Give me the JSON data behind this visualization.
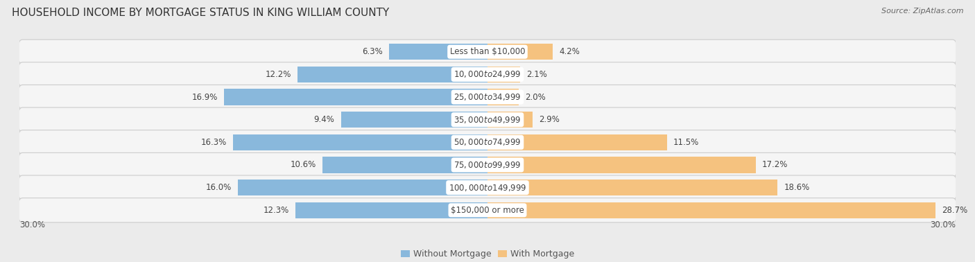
{
  "title": "HOUSEHOLD INCOME BY MORTGAGE STATUS IN KING WILLIAM COUNTY",
  "source": "Source: ZipAtlas.com",
  "categories": [
    "Less than $10,000",
    "$10,000 to $24,999",
    "$25,000 to $34,999",
    "$35,000 to $49,999",
    "$50,000 to $74,999",
    "$75,000 to $99,999",
    "$100,000 to $149,999",
    "$150,000 or more"
  ],
  "without_mortgage": [
    6.3,
    12.2,
    16.9,
    9.4,
    16.3,
    10.6,
    16.0,
    12.3
  ],
  "with_mortgage": [
    4.2,
    2.1,
    2.0,
    2.9,
    11.5,
    17.2,
    18.6,
    28.7
  ],
  "color_without": "#89b8dc",
  "color_with": "#f5c27f",
  "xlim": 30.0,
  "bg_color": "#ebebeb",
  "row_bg_color": "#f5f5f5",
  "title_fontsize": 11,
  "label_fontsize": 8.5,
  "pct_fontsize": 8.5,
  "legend_fontsize": 9,
  "source_fontsize": 8
}
